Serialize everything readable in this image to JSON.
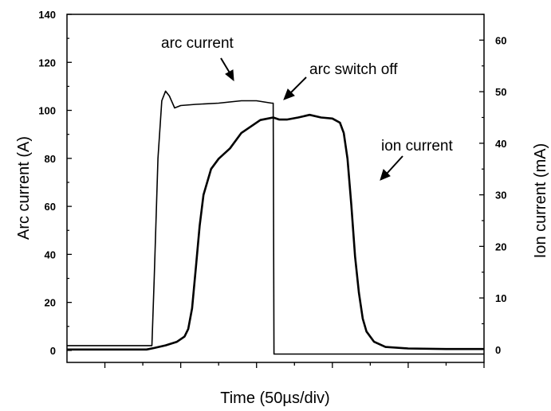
{
  "chart_data": {
    "type": "line",
    "xlabel": "Time (50µs/div)",
    "ylabel_left": "Arc current (A)",
    "ylabel_right": "Ion current (mA)",
    "x_unit": "µs",
    "xlim": [
      -50,
      500
    ],
    "ylim_left": [
      -5,
      140
    ],
    "ylim_right": [
      -2.5,
      65
    ],
    "yticks_left": [
      0,
      20,
      40,
      60,
      80,
      100,
      120,
      140
    ],
    "yticks_right": [
      0,
      10,
      20,
      30,
      40,
      50,
      60
    ],
    "x_tick_labels_shown": false,
    "grid": false,
    "legend": "none",
    "annotations": [
      {
        "text": "arc current",
        "target_series": "arc current"
      },
      {
        "text": "arc switch off",
        "target_series": "arc current"
      },
      {
        "text": "ion current",
        "target_series": "ion current"
      }
    ],
    "series": [
      {
        "axis": "left",
        "color": "#000000",
        "points": [
          [
            -50,
            2
          ],
          [
            60,
            2
          ],
          [
            62,
            2
          ],
          [
            65,
            30
          ],
          [
            70,
            80
          ],
          [
            75,
            104
          ],
          [
            80,
            108
          ],
          [
            85,
            106
          ],
          [
            92,
            101
          ],
          [
            100,
            102
          ],
          [
            120,
            102.5
          ],
          [
            150,
            103
          ],
          [
            180,
            104
          ],
          [
            200,
            104
          ],
          [
            210,
            103.5
          ],
          [
            220,
            103
          ],
          [
            222,
            103
          ],
          [
            223,
            -1.5
          ],
          [
            500,
            -1.5
          ]
        ]
      },
      {
        "axis": "right",
        "color": "#000000",
        "points": [
          [
            -50,
            0
          ],
          [
            55,
            0
          ],
          [
            65,
            0.3
          ],
          [
            80,
            0.8
          ],
          [
            95,
            1.5
          ],
          [
            105,
            2.5
          ],
          [
            110,
            4
          ],
          [
            115,
            8
          ],
          [
            120,
            16
          ],
          [
            125,
            24
          ],
          [
            130,
            30
          ],
          [
            140,
            35
          ],
          [
            150,
            37
          ],
          [
            165,
            39
          ],
          [
            180,
            42
          ],
          [
            195,
            43.5
          ],
          [
            205,
            44.5
          ],
          [
            215,
            44.8
          ],
          [
            222,
            45
          ],
          [
            230,
            44.6
          ],
          [
            240,
            44.6
          ],
          [
            255,
            45
          ],
          [
            270,
            45.5
          ],
          [
            285,
            45
          ],
          [
            300,
            44.8
          ],
          [
            310,
            44
          ],
          [
            315,
            42
          ],
          [
            320,
            37
          ],
          [
            325,
            28
          ],
          [
            330,
            18
          ],
          [
            335,
            11
          ],
          [
            340,
            6
          ],
          [
            345,
            3.5
          ],
          [
            355,
            1.5
          ],
          [
            370,
            0.5
          ],
          [
            400,
            0.2
          ],
          [
            450,
            0.1
          ],
          [
            500,
            0.1
          ]
        ]
      }
    ]
  }
}
